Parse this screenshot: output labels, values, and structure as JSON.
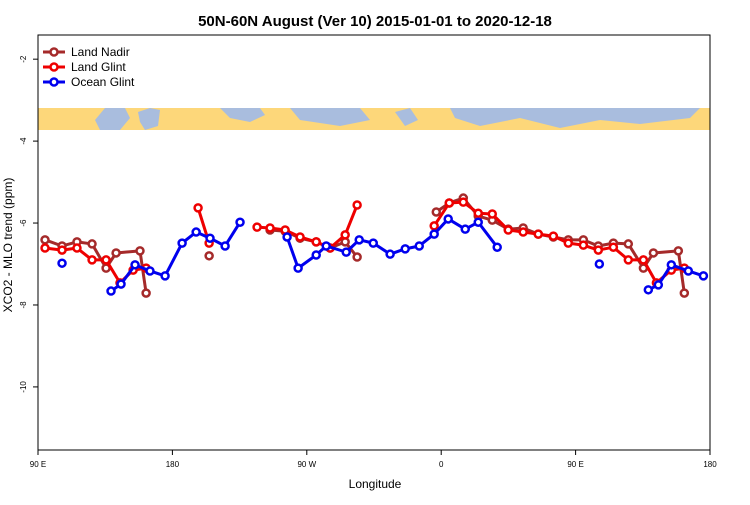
{
  "chart_data": {
    "type": "line",
    "title": "50N-60N August (Ver 10)   2015-01-01 to 2020-12-18",
    "x_label": "Longitude",
    "y_label": "XCO2 - MLO trend (ppm)",
    "xlim": [
      90,
      540
    ],
    "xticks": [
      {
        "value": 90,
        "label": "90 E"
      },
      {
        "value": 180,
        "label": "180"
      },
      {
        "value": 270,
        "label": "90 W"
      },
      {
        "value": 360,
        "label": "0"
      },
      {
        "value": 450,
        "label": "90 E"
      },
      {
        "value": 540,
        "label": "180"
      }
    ],
    "ylim": [
      -11.54,
      -1.41
    ],
    "yticks": [
      -2,
      -4,
      -6,
      -8,
      -10
    ],
    "grid": false,
    "legend": "top-left",
    "series": [
      {
        "name": "Land Nadir",
        "color": "#a52a2a",
        "x": [
          94.7,
          106.1,
          116.1,
          126.2,
          135.6,
          142.3,
          158.3,
          162.4,
          null,
          204.6,
          null,
          245.4,
          255.5,
          265.5,
          276.3,
          285.6,
          295.7,
          303.7,
          null,
          356.7,
          365.4,
          374.8,
          384.8,
          394.2,
          404.9,
          414.9,
          425,
          435.1,
          445.1,
          455.2,
          465.2,
          475.3,
          485.3,
          495.4,
          502.1,
          518.8,
          522.8
        ],
        "values": [
          -6.41,
          -6.56,
          -6.46,
          -6.51,
          -7.1,
          -6.73,
          -6.68,
          -7.71,
          null,
          -6.8,
          null,
          -6.17,
          -6.2,
          -6.37,
          -6.46,
          -6.61,
          -6.46,
          -6.83,
          null,
          -5.73,
          -5.51,
          -5.39,
          -5.83,
          -5.93,
          -6.15,
          -6.12,
          -6.27,
          -6.34,
          -6.41,
          -6.41,
          -6.56,
          -6.49,
          -6.51,
          -7.1,
          -6.73,
          -6.68,
          -7.71
        ]
      },
      {
        "name": "Land Glint",
        "color": "#ee0000",
        "x": [
          94.7,
          106.1,
          116.1,
          126.2,
          135.6,
          144.9,
          153.7,
          162.4,
          null,
          197.2,
          204.6,
          null,
          236.7,
          245.4,
          255.5,
          265.5,
          276.3,
          285.6,
          295.7,
          303.7,
          null,
          355.3,
          365.4,
          374.8,
          384.8,
          394.2,
          404.9,
          414.9,
          425,
          435.1,
          445.1,
          455.2,
          465.2,
          475.3,
          485.3,
          495.4,
          504.1,
          514.1,
          522.8
        ],
        "values": [
          -6.61,
          -6.66,
          -6.61,
          -6.9,
          -6.9,
          -7.46,
          -7.15,
          -7.1,
          null,
          -5.63,
          -6.49,
          null,
          -6.1,
          -6.12,
          -6.17,
          -6.34,
          -6.46,
          -6.61,
          -6.29,
          -5.56,
          null,
          -6.07,
          -5.51,
          -5.49,
          -5.76,
          -5.78,
          -6.17,
          -6.22,
          -6.27,
          -6.32,
          -6.49,
          -6.54,
          -6.66,
          -6.59,
          -6.9,
          -6.9,
          -7.46,
          -7.15,
          -7.1
        ]
      },
      {
        "name": "Ocean Glint",
        "color": "#0000ee",
        "x": [
          106.1,
          null,
          138.9,
          145.6,
          155,
          165,
          175.1,
          186.5,
          195.9,
          205.2,
          215.3,
          225.3,
          null,
          256.8,
          264.2,
          276.3,
          283,
          296.4,
          305.1,
          314.5,
          325.8,
          335.9,
          345.3,
          355.3,
          364.7,
          376.1,
          384.8,
          397.5,
          null,
          465.9,
          null,
          498.7,
          505.4,
          514.1,
          525.5,
          535.6
        ],
        "values": [
          -6.98,
          null,
          -7.66,
          -7.49,
          -7.02,
          -7.17,
          -7.29,
          -6.49,
          -6.22,
          -6.37,
          -6.56,
          -5.98,
          null,
          -6.34,
          -7.1,
          -6.78,
          -6.56,
          -6.71,
          -6.41,
          -6.49,
          -6.76,
          -6.63,
          -6.56,
          -6.27,
          -5.9,
          -6.15,
          -5.98,
          -6.59,
          null,
          -7.0,
          null,
          -7.63,
          -7.51,
          -7.02,
          -7.17,
          -7.29
        ]
      }
    ]
  }
}
